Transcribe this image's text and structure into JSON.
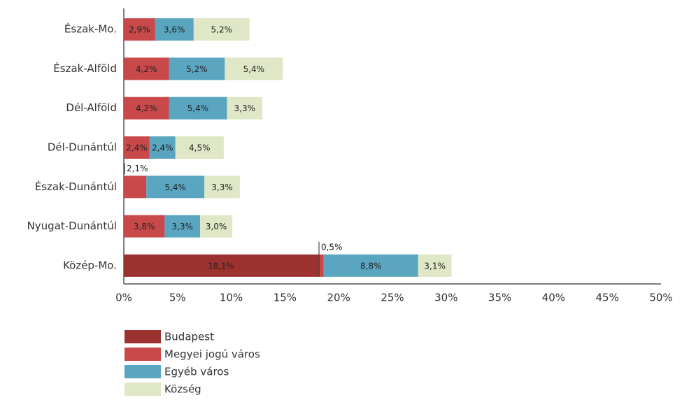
{
  "chart_data": {
    "type": "stacked_bar_horizontal",
    "categories": [
      "Észak-Mo.",
      "Észak-Alföld",
      "Dél-Alföld",
      "Dél-Dunántúl",
      "Észak-Dunántúl",
      "Nyugat-Dunántúl",
      "Közép-Mo."
    ],
    "series": [
      {
        "name": "Budapest",
        "color": "#9b3230",
        "values": [
          null,
          null,
          null,
          null,
          null,
          null,
          18.1
        ],
        "value_labels": [
          null,
          null,
          null,
          null,
          null,
          null,
          "18,1%"
        ]
      },
      {
        "name": "Megyei jogú város",
        "color": "#c9484a",
        "values": [
          2.9,
          4.2,
          4.2,
          2.4,
          2.1,
          3.8,
          0.5
        ],
        "value_labels": [
          "2,9%",
          "4,2%",
          "4,2%",
          "2,4%",
          "2,1%",
          "3,8%",
          "0,5%"
        ]
      },
      {
        "name": "Egyéb város",
        "color": "#5aa5c0",
        "values": [
          3.6,
          5.2,
          5.4,
          2.4,
          5.4,
          3.3,
          8.8
        ],
        "value_labels": [
          "3,6%",
          "5,2%",
          "5,4%",
          "2,4%",
          "5,4%",
          "3,3%",
          "8,8%"
        ]
      },
      {
        "name": "Község",
        "color": "#dfe7c6",
        "values": [
          5.2,
          5.4,
          3.3,
          4.5,
          3.3,
          3.0,
          3.1
        ],
        "value_labels": [
          "5,2%",
          "5,4%",
          "3,3%",
          "4,5%",
          "3,3%",
          "3,0%",
          "3,1%"
        ]
      }
    ],
    "xlim": [
      0,
      50
    ],
    "xticks": [
      {
        "value": 0,
        "label": "0%"
      },
      {
        "value": 5,
        "label": "5%"
      },
      {
        "value": 10,
        "label": "10%"
      },
      {
        "value": 15,
        "label": "15%"
      },
      {
        "value": 20,
        "label": "20%"
      },
      {
        "value": 25,
        "label": "25%"
      },
      {
        "value": 30,
        "label": "30%"
      },
      {
        "value": 35,
        "label": "35%"
      },
      {
        "value": 40,
        "label": "40%"
      },
      {
        "value": 45,
        "label": "45%"
      },
      {
        "value": 50,
        "label": "50%"
      }
    ],
    "legend": "bottom-left"
  }
}
